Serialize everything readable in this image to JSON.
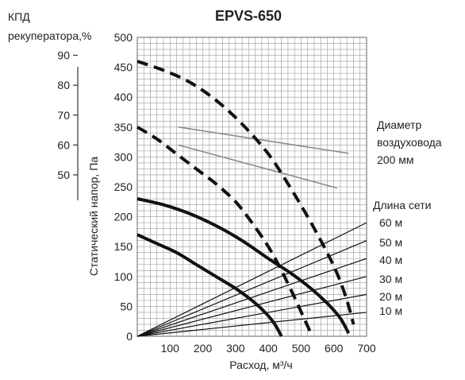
{
  "chart_data": {
    "type": "line",
    "title": "EPVS-650",
    "xlabel": "Расход, м³/ч",
    "ylabel": "Статический напор, Па",
    "xlim": [
      0,
      700
    ],
    "ylim": [
      0,
      500
    ],
    "x_ticks": [
      100,
      200,
      300,
      400,
      500,
      600,
      700
    ],
    "y_ticks": [
      0,
      50,
      100,
      150,
      200,
      250,
      300,
      350,
      400,
      450,
      500
    ],
    "grid": true,
    "efficiency_axis": {
      "label_line1": "КПД",
      "label_line2": "рекуператора,%",
      "ticks": [
        {
          "label": "90",
          "y": 470
        },
        {
          "label": "80",
          "y": 420
        },
        {
          "label": "70",
          "y": 370
        },
        {
          "label": "60",
          "y": 320
        },
        {
          "label": "50",
          "y": 270
        }
      ]
    },
    "fan_curves": [
      {
        "style": "dashed",
        "points": [
          [
            0,
            460
          ],
          [
            80,
            445
          ],
          [
            160,
            425
          ],
          [
            240,
            395
          ],
          [
            320,
            355
          ],
          [
            400,
            305
          ],
          [
            460,
            255
          ],
          [
            520,
            200
          ],
          [
            570,
            150
          ],
          [
            610,
            105
          ],
          [
            640,
            60
          ],
          [
            660,
            20
          ]
        ]
      },
      {
        "style": "dashed",
        "points": [
          [
            0,
            350
          ],
          [
            60,
            330
          ],
          [
            120,
            305
          ],
          [
            180,
            280
          ],
          [
            240,
            255
          ],
          [
            300,
            225
          ],
          [
            350,
            190
          ],
          [
            400,
            150
          ],
          [
            440,
            110
          ],
          [
            480,
            65
          ],
          [
            505,
            35
          ],
          [
            530,
            5
          ]
        ]
      },
      {
        "style": "solid",
        "points": [
          [
            0,
            230
          ],
          [
            80,
            220
          ],
          [
            160,
            205
          ],
          [
            240,
            185
          ],
          [
            320,
            160
          ],
          [
            400,
            130
          ],
          [
            470,
            105
          ],
          [
            530,
            80
          ],
          [
            580,
            55
          ],
          [
            620,
            30
          ],
          [
            645,
            5
          ]
        ]
      },
      {
        "style": "solid",
        "points": [
          [
            0,
            170
          ],
          [
            60,
            155
          ],
          [
            120,
            140
          ],
          [
            180,
            120
          ],
          [
            240,
            100
          ],
          [
            300,
            80
          ],
          [
            350,
            60
          ],
          [
            390,
            40
          ],
          [
            420,
            20
          ],
          [
            440,
            0
          ]
        ]
      }
    ],
    "efficiency_lines": [
      {
        "points": [
          [
            125,
            350
          ],
          [
            645,
            306
          ]
        ]
      },
      {
        "points": [
          [
            125,
            320
          ],
          [
            610,
            248
          ]
        ]
      }
    ],
    "network_lines": [
      {
        "label": "60 м",
        "end_y": 190
      },
      {
        "label": "50 м",
        "end_y": 160
      },
      {
        "label": "40 м",
        "end_y": 130
      },
      {
        "label": "30 м",
        "end_y": 100
      },
      {
        "label": "20 м",
        "end_y": 70
      },
      {
        "label": "10 м",
        "end_y": 40
      }
    ],
    "duct_label_1": "Диаметр",
    "duct_label_2": "воздуховода",
    "duct_label_3": "200 мм",
    "network_title": "Длина сети"
  }
}
